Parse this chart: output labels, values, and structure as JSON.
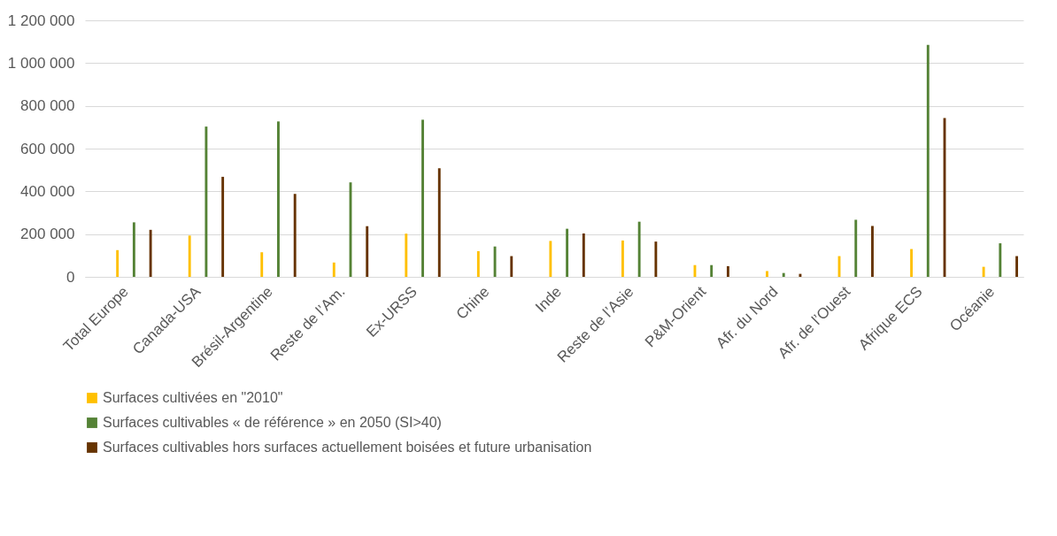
{
  "chart_data": {
    "type": "bar",
    "categories": [
      "Total Europe",
      "Canada-USA",
      "Brésil-Argentine",
      "Reste de l’Am.",
      "Ex-URSS",
      "Chine",
      "Inde",
      "Reste de l’Asie",
      "P&M-Orient",
      "Afr. du Nord",
      "Afr. de l’Ouest",
      "Afrique ECS",
      "Océanie"
    ],
    "series": [
      {
        "name": "Surfaces cultivées en \"2010\"",
        "color": "#ffc000",
        "values": [
          125000,
          193000,
          115000,
          67000,
          202000,
          120000,
          168000,
          170000,
          55000,
          27000,
          97000,
          130000,
          47000
        ]
      },
      {
        "name": "Surfaces cultivables « de référence » en 2050 (SI>40)",
        "color": "#548235",
        "values": [
          255000,
          703000,
          727000,
          442000,
          735000,
          142000,
          225000,
          258000,
          55000,
          18000,
          267000,
          1085000,
          157000
        ]
      },
      {
        "name": "Surfaces cultivables hors surfaces actuellement boisées et future urbanisation",
        "color": "#663300",
        "values": [
          220000,
          468000,
          388000,
          237000,
          508000,
          97000,
          203000,
          165000,
          50000,
          14000,
          238000,
          743000,
          97000
        ]
      }
    ],
    "ylim": [
      0,
      1200000
    ],
    "yticks": [
      {
        "value": 0,
        "label": "0"
      },
      {
        "value": 200000,
        "label": "200 000"
      },
      {
        "value": 400000,
        "label": "400 000"
      },
      {
        "value": 600000,
        "label": "600 000"
      },
      {
        "value": 800000,
        "label": "800 000"
      },
      {
        "value": 1000000,
        "label": "1 000 000"
      },
      {
        "value": 1200000,
        "label": "1 200 000"
      }
    ],
    "grid": true,
    "legend": "bottom"
  }
}
